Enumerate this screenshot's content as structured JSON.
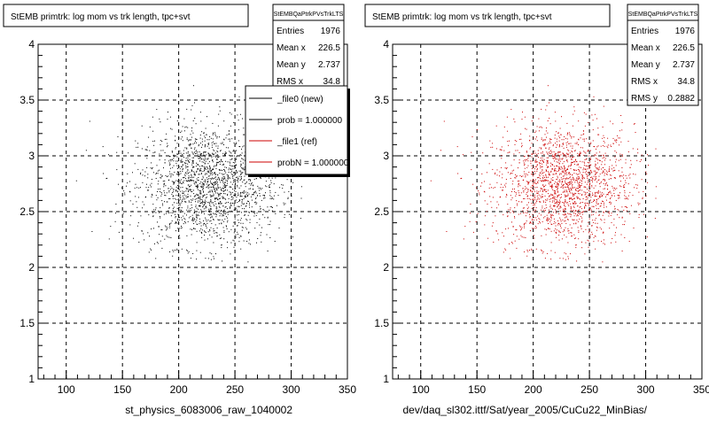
{
  "chart_data": [
    {
      "type": "scatter",
      "title": "StEMB primtrk: log mom vs trk length, tpc+svt",
      "xlabel": "st_physics_6083006_raw_1040002",
      "ylabel": "",
      "xlim": [
        75,
        350
      ],
      "ylim": [
        1,
        4
      ],
      "x_ticks": [
        "100",
        "150",
        "200",
        "250",
        "300",
        "350"
      ],
      "y_ticks": [
        "1",
        "1.5",
        "2",
        "2.5",
        "3",
        "3.5",
        "4"
      ],
      "grid": true,
      "marker_color": "#000000",
      "cluster": {
        "x_center": 226.5,
        "y_center": 2.737,
        "x_rms": 34.8,
        "y_rms": 0.2882,
        "entries": 1976
      },
      "stats": {
        "name": "StEMBQaPtrkPVsTrkLTS",
        "rows": [
          {
            "label": "Entries",
            "value": "1976"
          },
          {
            "label": "Mean x",
            "value": "226.5"
          },
          {
            "label": "Mean y",
            "value": "2.737"
          },
          {
            "label": "RMS x",
            "value": "34.8"
          }
        ]
      },
      "legend": {
        "placement": "top-right",
        "entries": [
          {
            "label": "_file0 (new)",
            "color": "#000000"
          },
          {
            "label": "prob = 1.000000",
            "color": "#000000"
          },
          {
            "label": "_file1 (ref)",
            "color": "#cc0000"
          },
          {
            "label": "probN = 1.000000",
            "color": "#cc0000"
          }
        ]
      }
    },
    {
      "type": "scatter",
      "title": "StEMB primtrk: log mom vs trk length, tpc+svt",
      "xlabel": "dev/daq_sl302.ittf/Sat/year_2005/CuCu22_MinBias/",
      "ylabel": "",
      "xlim": [
        75,
        350
      ],
      "ylim": [
        1,
        4
      ],
      "x_ticks": [
        "100",
        "150",
        "200",
        "250",
        "300",
        "350"
      ],
      "y_ticks": [
        "1",
        "1.5",
        "2",
        "2.5",
        "3",
        "3.5",
        "4"
      ],
      "grid": true,
      "marker_color": "#cc0000",
      "cluster": {
        "x_center": 226.5,
        "y_center": 2.737,
        "x_rms": 34.8,
        "y_rms": 0.2882,
        "entries": 1976
      },
      "stats": {
        "name": "StEMBQaPtrkPVsTrkLTS",
        "rows": [
          {
            "label": "Entries",
            "value": "1976"
          },
          {
            "label": "Mean x",
            "value": "226.5"
          },
          {
            "label": "Mean y",
            "value": "2.737"
          },
          {
            "label": "RMS x",
            "value": "34.8"
          },
          {
            "label": "RMS y",
            "value": "0.2882"
          }
        ]
      }
    }
  ]
}
